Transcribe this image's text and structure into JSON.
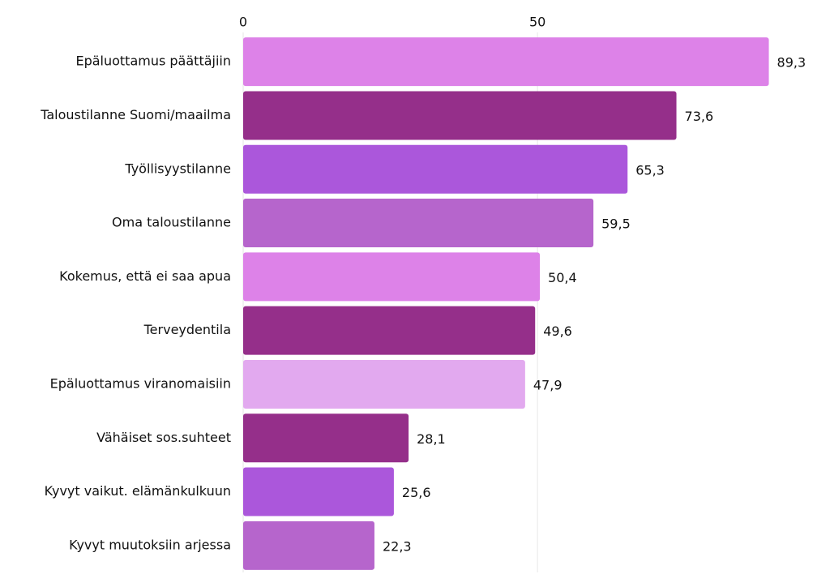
{
  "chart_data": {
    "type": "hbar",
    "categories": [
      "Epäluottamus päättäjiin",
      "Taloustilanne Suomi/maailma",
      "Työllisyystilanne",
      "Oma taloustilanne",
      "Kokemus, että ei saa apua",
      "Terveydentila",
      "Epäluottamus viranomaisiin",
      "Vähäiset sos.suhteet",
      "Kyvyt vaikut. elämänkulkuun",
      "Kyvyt muutoksiin arjessa"
    ],
    "values": [
      89.3,
      73.6,
      65.3,
      59.5,
      50.4,
      49.6,
      47.9,
      28.1,
      25.6,
      22.3
    ],
    "value_labels": [
      "89,3",
      "73,6",
      "65,3",
      "59,5",
      "50,4",
      "49,6",
      "47,9",
      "28,1",
      "25,6",
      "22,3"
    ],
    "colors": [
      "#dd82e8",
      "#952f8a",
      "#ab57db",
      "#b665cc",
      "#dd82e8",
      "#952f8a",
      "#e2a9ef",
      "#952f8a",
      "#ab57db",
      "#b665cc"
    ],
    "xlim": [
      0,
      99
    ],
    "xticks": [
      0,
      50
    ],
    "grid": true
  }
}
